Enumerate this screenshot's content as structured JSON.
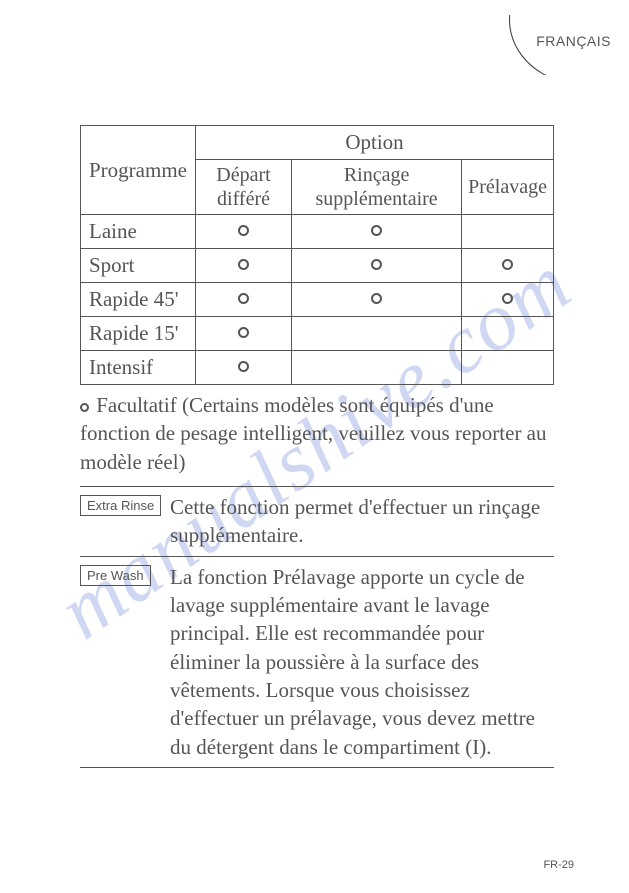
{
  "watermark": "manualshive.com",
  "language_tab": "FRANÇAIS",
  "table": {
    "header_programme": "Programme",
    "header_option": "Option",
    "sub_depart": "Départ différé",
    "sub_rincage": "Rinçage supplémentaire",
    "sub_prelavage": "Prélavage",
    "rows": {
      "laine": "Laine",
      "sport": "Sport",
      "rapide45": "Rapide 45'",
      "rapide15": "Rapide 15'",
      "intensif": "Intensif"
    },
    "marks": {
      "laine": [
        true,
        true,
        false
      ],
      "sport": [
        true,
        true,
        true
      ],
      "rapide45": [
        true,
        true,
        true
      ],
      "rapide15": [
        true,
        false,
        false
      ],
      "intensif": [
        true,
        false,
        false
      ]
    }
  },
  "note": "Facultatif (Certains modèles sont équipés d'une fonction de pesage intelligent, veuillez vous reporter au modèle réel)",
  "functions": {
    "extra_rinse": {
      "button": "Extra Rinse",
      "desc": "Cette fonction permet d'effectuer un rinçage supplémentaire."
    },
    "pre_wash": {
      "button": "Pre Wash",
      "desc": "La fonction Prélavage apporte un cycle de lavage supplémentaire avant le lavage principal. Elle est recommandée pour éliminer la poussière à la surface des vêtements. Lorsque vous choisissez d'effectuer un prélavage, vous devez mettre du détergent dans le compartiment (I)."
    }
  },
  "page_num": "FR-29"
}
